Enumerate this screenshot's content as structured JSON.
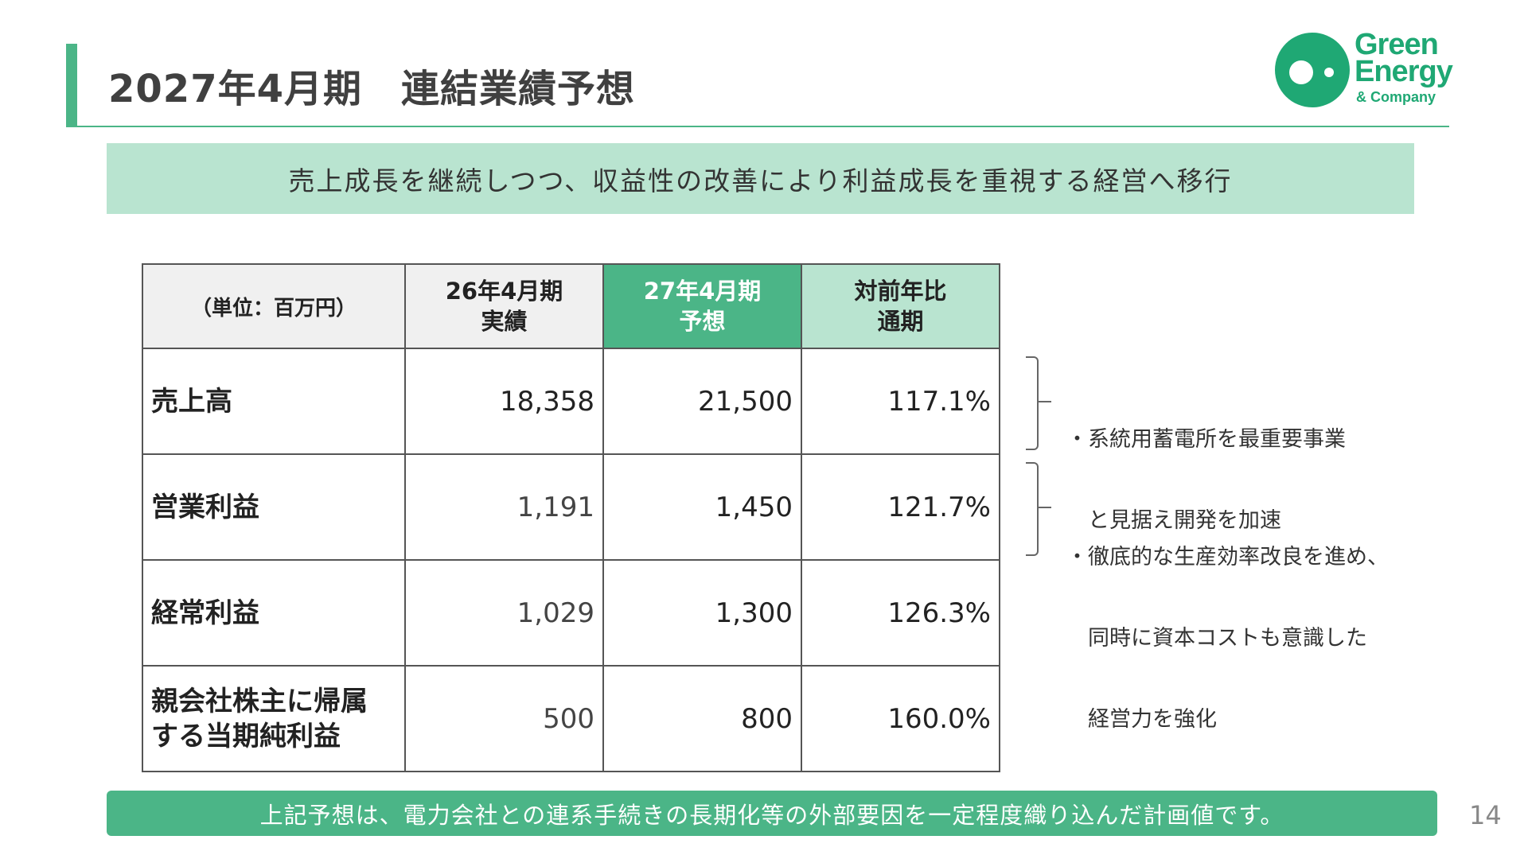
{
  "header": {
    "title": "2027年4月期　連結業績予想",
    "logo": {
      "line1": "Green",
      "line2": "Energy",
      "line3": "& Company"
    }
  },
  "banner": {
    "text": "売上成長を継続しつつ、収益性の改善により利益成長を重視する経営へ移行"
  },
  "table": {
    "unit_label": "（単位：百万円）",
    "columns": [
      {
        "line1": "26年4月期",
        "line2": "実績"
      },
      {
        "line1": "27年4月期",
        "line2": "予想"
      },
      {
        "line1": "対前年比",
        "line2": "通期"
      }
    ],
    "rows": [
      {
        "label_line1": "売上高",
        "label_line2": "",
        "actual": "18,358",
        "forecast": "21,500",
        "yoy": "117.1%"
      },
      {
        "label_line1": "営業利益",
        "label_line2": "",
        "actual": "1,191",
        "forecast": "1,450",
        "yoy": "121.7%"
      },
      {
        "label_line1": "経常利益",
        "label_line2": "",
        "actual": "1,029",
        "forecast": "1,300",
        "yoy": "126.3%"
      },
      {
        "label_line1": "親会社株主に帰属",
        "label_line2": "する当期純利益",
        "actual": "500",
        "forecast": "800",
        "yoy": "160.0%"
      }
    ]
  },
  "notes": [
    {
      "line1": "・系統用蓄電所を最重要事業",
      "line2": "　と見据え開発を加速",
      "line3": ""
    },
    {
      "line1": "・徹底的な生産効率改良を進め、",
      "line2": "　同時に資本コストも意識した",
      "line3": "　経営力を強化"
    }
  ],
  "footer": {
    "text": "上記予想は、電力会社との連系手続きの長期化等の外部要因を一定程度織り込んだ計画値です。"
  },
  "page_number": "14",
  "colors": {
    "accent": "#4bb587",
    "accent_light": "#b9e4d0",
    "logo": "#1fa874"
  }
}
